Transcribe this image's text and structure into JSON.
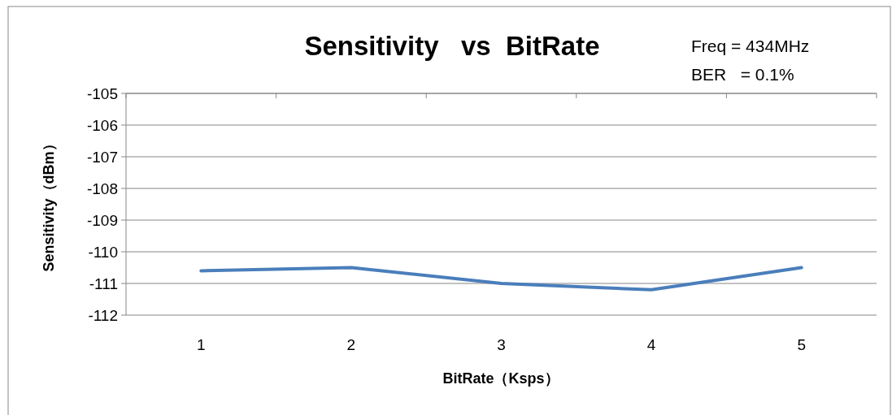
{
  "chart_data": {
    "type": "line",
    "title": "Sensitivity   vs  BitRate",
    "xlabel": "BitRate（Ksps）",
    "ylabel": "Sensitivity（dBm）",
    "annotations": [
      "Freq = 434MHz",
      "BER   = 0.1%"
    ],
    "categories": [
      "1",
      "2",
      "3",
      "4",
      "5"
    ],
    "series": [
      {
        "color": "#4a7ebb",
        "values": [
          -110.6,
          -110.5,
          -111.0,
          -111.2,
          -110.5
        ]
      }
    ],
    "ylim": [
      -112,
      -105
    ],
    "yticks": [
      -112,
      -111,
      -110,
      -109,
      -108,
      -107,
      -106,
      -105
    ],
    "grid": "y",
    "marker": "none",
    "line_style": "solid"
  }
}
